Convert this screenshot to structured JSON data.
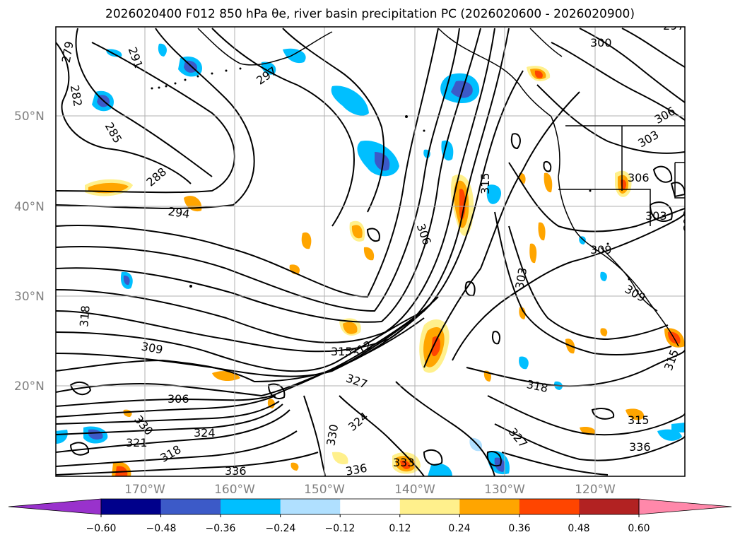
{
  "title": "2026020400 F012 850 hPa θe, river basin precipitation PC (2026020600 - 2026020900)",
  "map": {
    "lat_labels": [
      "50°N",
      "40°N",
      "30°N",
      "20°N"
    ],
    "lon_labels": [
      "170°W",
      "160°W",
      "150°W",
      "140°W",
      "130°W",
      "120°W"
    ],
    "contour_labels": [
      "279",
      "282",
      "285",
      "288",
      "291",
      "294",
      "297",
      "297",
      "300",
      "303",
      "303",
      "303",
      "303",
      "306",
      "306",
      "306",
      "306",
      "309",
      "309",
      "309",
      "312",
      "315",
      "315",
      "315",
      "315",
      "318",
      "318",
      "318",
      "321",
      "324",
      "324",
      "327",
      "327",
      "330",
      "330",
      "333",
      "336",
      "336",
      "336"
    ],
    "contour_color": "#000000",
    "gridline_color": "#b0b0b0",
    "coastline_color": "#000000"
  },
  "colorbar": {
    "tick_labels": [
      "−0.60",
      "−0.48",
      "−0.36",
      "−0.24",
      "−0.12",
      "0.12",
      "0.24",
      "0.36",
      "0.48",
      "0.60"
    ],
    "colors": [
      "#9932cc",
      "#00008b",
      "#3c5ac8",
      "#00bfff",
      "#b0e0ff",
      "#ffffff",
      "#fff08c",
      "#ffa500",
      "#ff4500",
      "#b22222",
      "#ff88aa"
    ],
    "extend": "both"
  }
}
